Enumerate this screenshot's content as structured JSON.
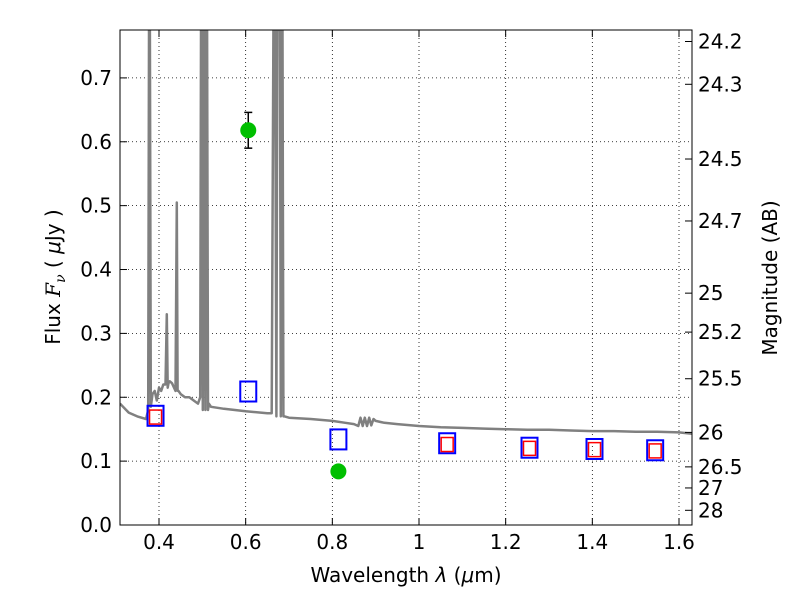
{
  "chart_data": {
    "type": "scatter",
    "xlabel": "Wavelength  λ (μm)",
    "ylabel": "Flux  F_ν  ( μJy )",
    "ylabel_right": "Magnitude (AB)",
    "xlim": [
      0.31,
      1.63
    ],
    "ylim": [
      0.0,
      0.775
    ],
    "grid": true,
    "x_ticks": [
      {
        "value": 0.4,
        "label": "0.4"
      },
      {
        "value": 0.6,
        "label": "0.6"
      },
      {
        "value": 0.8,
        "label": "0.8"
      },
      {
        "value": 1.0,
        "label": "1"
      },
      {
        "value": 1.2,
        "label": "1.2"
      },
      {
        "value": 1.4,
        "label": "1.4"
      },
      {
        "value": 1.6,
        "label": "1.6"
      }
    ],
    "y_ticks": [
      {
        "value": 0.0,
        "label": "0.0"
      },
      {
        "value": 0.1,
        "label": "0.1"
      },
      {
        "value": 0.2,
        "label": "0.2"
      },
      {
        "value": 0.3,
        "label": "0.3"
      },
      {
        "value": 0.4,
        "label": "0.4"
      },
      {
        "value": 0.5,
        "label": "0.5"
      },
      {
        "value": 0.6,
        "label": "0.6"
      },
      {
        "value": 0.7,
        "label": "0.7"
      }
    ],
    "magnitude_ticks": [
      {
        "flux": 0.757,
        "label": "24.2"
      },
      {
        "flux": 0.69,
        "label": "24.3"
      },
      {
        "flux": 0.573,
        "label": "24.5"
      },
      {
        "flux": 0.476,
        "label": "24.7"
      },
      {
        "flux": 0.363,
        "label": "25"
      },
      {
        "flux": 0.302,
        "label": "25.2"
      },
      {
        "flux": 0.229,
        "label": "25.5"
      },
      {
        "flux": 0.145,
        "label": "26"
      },
      {
        "flux": 0.091,
        "label": "26.5"
      },
      {
        "flux": 0.058,
        "label": "27"
      },
      {
        "flux": 0.023,
        "label": "28"
      }
    ],
    "series": [
      {
        "name": "model SED",
        "kind": "line",
        "color": "#808080",
        "x": [
          0.31,
          0.33,
          0.35,
          0.37,
          0.375,
          0.377,
          0.379,
          0.381,
          0.385,
          0.39,
          0.395,
          0.4,
          0.405,
          0.41,
          0.415,
          0.418,
          0.42,
          0.422,
          0.425,
          0.43,
          0.438,
          0.441,
          0.443,
          0.445,
          0.45,
          0.46,
          0.47,
          0.48,
          0.49,
          0.495,
          0.497,
          0.499,
          0.501,
          0.503,
          0.505,
          0.507,
          0.509,
          0.511,
          0.513,
          0.515,
          0.52,
          0.55,
          0.6,
          0.65,
          0.66,
          0.664,
          0.666,
          0.668,
          0.671,
          0.673,
          0.676,
          0.679,
          0.681,
          0.683,
          0.685,
          0.687,
          0.69,
          0.7,
          0.75,
          0.8,
          0.83,
          0.85,
          0.86,
          0.865,
          0.87,
          0.875,
          0.88,
          0.885,
          0.89,
          0.895,
          0.9,
          0.92,
          0.95,
          1.0,
          1.05,
          1.1,
          1.15,
          1.2,
          1.25,
          1.3,
          1.35,
          1.4,
          1.45,
          1.5,
          1.55,
          1.6,
          1.63
        ],
        "y": [
          0.19,
          0.176,
          0.17,
          0.166,
          0.18,
          0.775,
          0.775,
          0.185,
          0.205,
          0.21,
          0.195,
          0.215,
          0.21,
          0.22,
          0.22,
          0.33,
          0.215,
          0.222,
          0.225,
          0.222,
          0.21,
          0.505,
          0.21,
          0.21,
          0.205,
          0.2,
          0.2,
          0.195,
          0.19,
          0.2,
          0.775,
          0.775,
          0.18,
          0.775,
          0.775,
          0.18,
          0.775,
          0.775,
          0.18,
          0.19,
          0.185,
          0.182,
          0.178,
          0.175,
          0.175,
          0.775,
          0.775,
          0.775,
          0.17,
          0.775,
          0.775,
          0.775,
          0.17,
          0.775,
          0.775,
          0.17,
          0.17,
          0.168,
          0.166,
          0.163,
          0.16,
          0.158,
          0.155,
          0.168,
          0.155,
          0.168,
          0.155,
          0.168,
          0.156,
          0.166,
          0.163,
          0.16,
          0.158,
          0.155,
          0.153,
          0.152,
          0.151,
          0.15,
          0.149,
          0.149,
          0.148,
          0.147,
          0.147,
          0.146,
          0.146,
          0.145,
          0.143
        ]
      },
      {
        "name": "observed photometry",
        "kind": "errorbar",
        "color": "#00bf00",
        "points": [
          {
            "x": 0.606,
            "y": 0.618,
            "err": 0.028
          },
          {
            "x": 0.814,
            "y": 0.084,
            "err": 0.008
          }
        ]
      },
      {
        "name": "model photometry",
        "kind": "square",
        "color": "#0000ff",
        "points": [
          {
            "x": 0.392,
            "y": 0.171
          },
          {
            "x": 0.606,
            "y": 0.209
          },
          {
            "x": 0.814,
            "y": 0.134
          },
          {
            "x": 1.065,
            "y": 0.128
          },
          {
            "x": 1.255,
            "y": 0.121
          },
          {
            "x": 1.405,
            "y": 0.119
          },
          {
            "x": 1.545,
            "y": 0.117
          }
        ]
      },
      {
        "name": "comparison photometry",
        "kind": "square",
        "color": "#ff0000",
        "points": [
          {
            "x": 0.392,
            "y": 0.169
          },
          {
            "x": 1.065,
            "y": 0.126
          },
          {
            "x": 1.255,
            "y": 0.12
          },
          {
            "x": 1.405,
            "y": 0.118
          },
          {
            "x": 1.545,
            "y": 0.116
          }
        ]
      }
    ]
  }
}
